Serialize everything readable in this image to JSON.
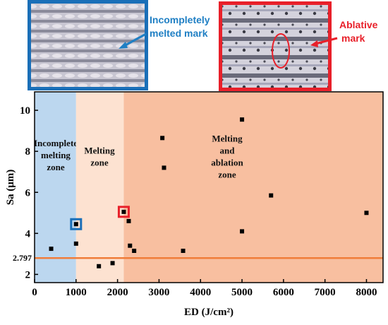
{
  "inset_left": {
    "note_line1": "Incompletely",
    "note_line2": "melted mark",
    "frame_color": "#1a6fb8"
  },
  "inset_right": {
    "note_line1": "Ablative",
    "note_line2": "mark",
    "frame_color": "#e8202a"
  },
  "chart_data": {
    "type": "scatter",
    "xlabel": "ED (J/cm²)",
    "ylabel": "Sa (μm)",
    "xlim": [
      0,
      8400
    ],
    "ylim": [
      1.6,
      10.9
    ],
    "x_ticks": [
      0,
      1000,
      2000,
      3000,
      4000,
      5000,
      6000,
      7000,
      8000
    ],
    "y_ticks": [
      2,
      4,
      6,
      8,
      10
    ],
    "grid": false,
    "zones": [
      {
        "label_lines": [
          "Incomplete",
          "melting",
          "zone"
        ],
        "x_range": [
          0,
          1000
        ],
        "color": "#bcd7ef"
      },
      {
        "label_lines": [
          "Melting",
          "zone"
        ],
        "x_range": [
          1000,
          2150
        ],
        "color": "#fde2d1"
      },
      {
        "label_lines": [
          "Melting",
          "and",
          "ablation",
          "zone"
        ],
        "x_range": [
          2150,
          8400
        ],
        "color": "#f8bfa0"
      }
    ],
    "threshold": {
      "value": 2.797,
      "label": "2.797",
      "color": "#f07d3a"
    },
    "points": [
      {
        "x": 400,
        "y": 3.25
      },
      {
        "x": 1000,
        "y": 3.5
      },
      {
        "x": 1000,
        "y": 4.45,
        "highlight": "#1a6fb8"
      },
      {
        "x": 1550,
        "y": 2.4
      },
      {
        "x": 1880,
        "y": 2.55
      },
      {
        "x": 2150,
        "y": 5.05,
        "highlight": "#e8202a"
      },
      {
        "x": 2270,
        "y": 4.6
      },
      {
        "x": 2300,
        "y": 3.4
      },
      {
        "x": 2400,
        "y": 3.15
      },
      {
        "x": 3080,
        "y": 8.65
      },
      {
        "x": 3120,
        "y": 7.2
      },
      {
        "x": 3580,
        "y": 3.15
      },
      {
        "x": 5000,
        "y": 9.55
      },
      {
        "x": 5000,
        "y": 4.1
      },
      {
        "x": 5700,
        "y": 5.85
      },
      {
        "x": 8000,
        "y": 5.0
      }
    ]
  }
}
